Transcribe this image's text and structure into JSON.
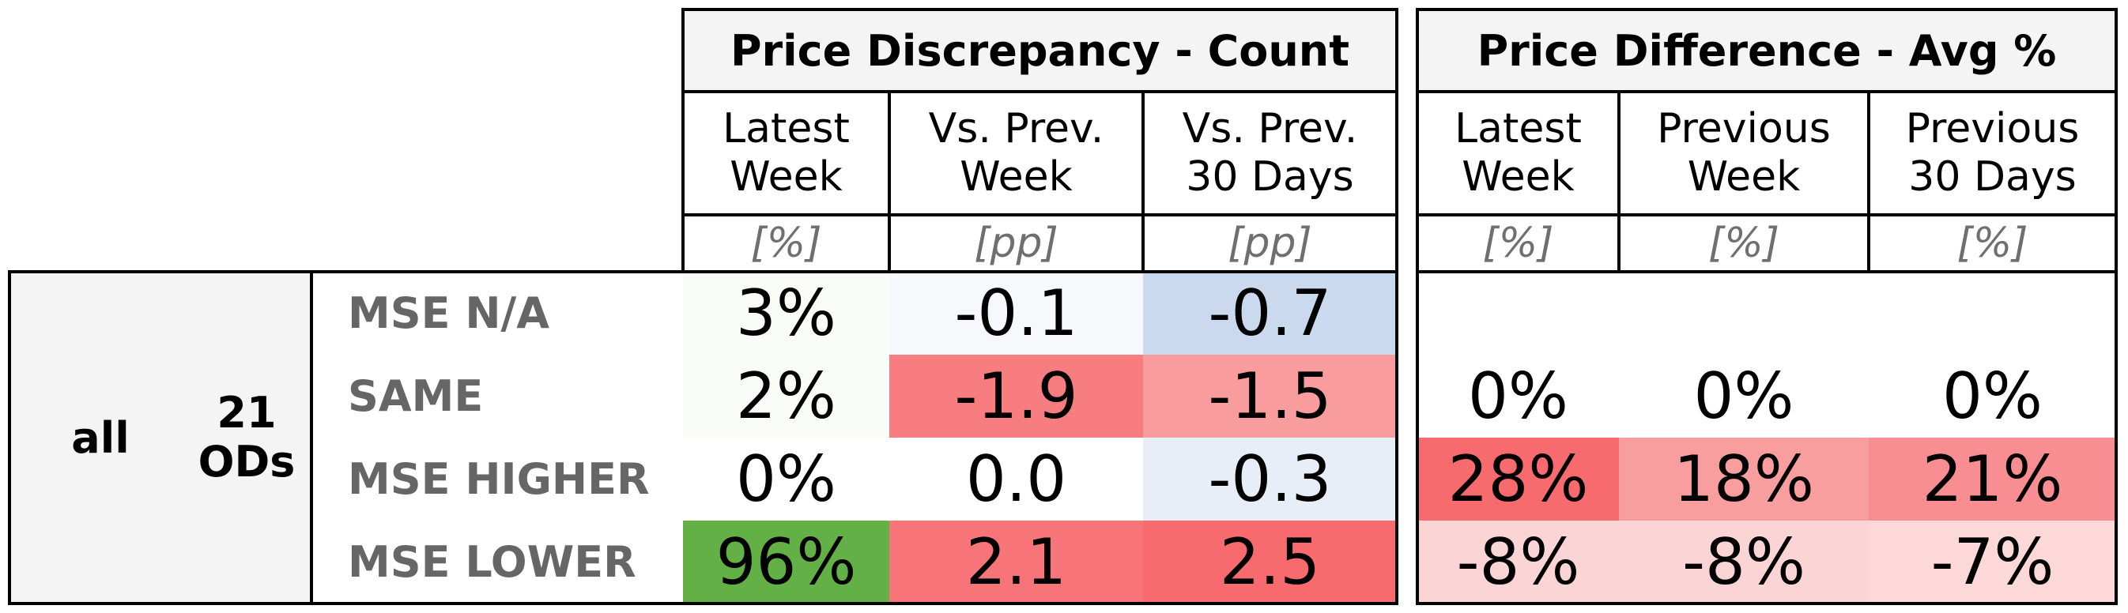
{
  "table": {
    "group_label": "all",
    "sub_group_label": "21\nODs",
    "section_count": {
      "title": "Price Discrepancy - Count",
      "columns": [
        {
          "header": "Latest\nWeek",
          "unit": "[%]"
        },
        {
          "header": "Vs. Prev.\nWeek",
          "unit": "[pp]"
        },
        {
          "header": "Vs. Prev.\n30 Days",
          "unit": "[pp]"
        }
      ]
    },
    "section_avg": {
      "title": "Price Difference - Avg %",
      "columns": [
        {
          "header": "Latest\nWeek",
          "unit": "[%]"
        },
        {
          "header": "Previous\nWeek",
          "unit": "[%]"
        },
        {
          "header": "Previous\n30 Days",
          "unit": "[%]"
        }
      ]
    },
    "rows": [
      {
        "label": "MSE N/A",
        "count": [
          {
            "text": "3%",
            "bg": "#f9fcf7"
          },
          {
            "text": "-0.1",
            "bg": "#f6f8fc"
          },
          {
            "text": "-0.7",
            "bg": "#cad9ed"
          }
        ],
        "avg": [
          {
            "text": "",
            "bg": "#ffffff"
          },
          {
            "text": "",
            "bg": "#ffffff"
          },
          {
            "text": "",
            "bg": "#ffffff"
          }
        ]
      },
      {
        "label": "SAME",
        "count": [
          {
            "text": "2%",
            "bg": "#fafcf8"
          },
          {
            "text": "-1.9",
            "bg": "#f77d80"
          },
          {
            "text": "-1.5",
            "bg": "#f99c9e"
          }
        ],
        "avg": [
          {
            "text": "0%",
            "bg": "#ffffff"
          },
          {
            "text": "0%",
            "bg": "#ffffff"
          },
          {
            "text": "0%",
            "bg": "#ffffff"
          }
        ]
      },
      {
        "label": "MSE HIGHER",
        "count": [
          {
            "text": "0%",
            "bg": "#ffffff"
          },
          {
            "text": "0.0",
            "bg": "#ffffff"
          },
          {
            "text": "-0.3",
            "bg": "#e8eef7"
          }
        ],
        "avg": [
          {
            "text": "28%",
            "bg": "#f76b6f"
          },
          {
            "text": "18%",
            "bg": "#f99e9f"
          },
          {
            "text": "21%",
            "bg": "#f88e91"
          }
        ]
      },
      {
        "label": "MSE LOWER",
        "count": [
          {
            "text": "96%",
            "bg": "#63b146"
          },
          {
            "text": "2.1",
            "bg": "#f77478"
          },
          {
            "text": "2.5",
            "bg": "#f76b6f"
          }
        ],
        "avg": [
          {
            "text": "-8%",
            "bg": "#fbd4d5"
          },
          {
            "text": "-8%",
            "bg": "#fbd4d5"
          },
          {
            "text": "-7%",
            "bg": "#fcd8d9"
          }
        ]
      }
    ]
  }
}
